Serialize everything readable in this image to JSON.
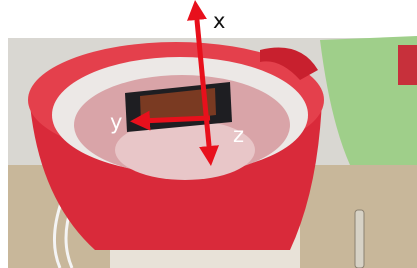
{
  "axes": [
    {
      "label": "x"
    },
    {
      "label": "y"
    },
    {
      "label": "z"
    }
  ]
}
